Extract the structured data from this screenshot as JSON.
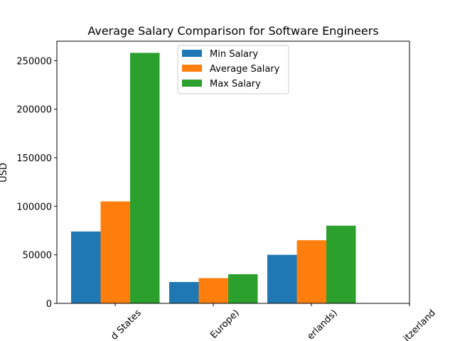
{
  "chart_data": {
    "type": "bar",
    "title": "Average Salary Comparison for Software Engineers",
    "xlabel": "",
    "ylabel": "USD",
    "categories": [
      "d States",
      "Europe)",
      "erlands)",
      "itzerland"
    ],
    "series": [
      {
        "name": "Min Salary",
        "color": "#1f77b4",
        "values": [
          74000,
          22000,
          50000,
          null
        ]
      },
      {
        "name": "Average Salary",
        "color": "#ff7f0e",
        "values": [
          105000,
          26000,
          65000,
          null
        ]
      },
      {
        "name": "Max Salary",
        "color": "#2ca02c",
        "values": [
          258000,
          30000,
          80000,
          null
        ]
      }
    ],
    "ylim": [
      0,
      270000
    ],
    "yticks": [
      0,
      50000,
      100000,
      150000,
      200000,
      250000
    ],
    "grid": false,
    "legend_position": "top-center"
  }
}
